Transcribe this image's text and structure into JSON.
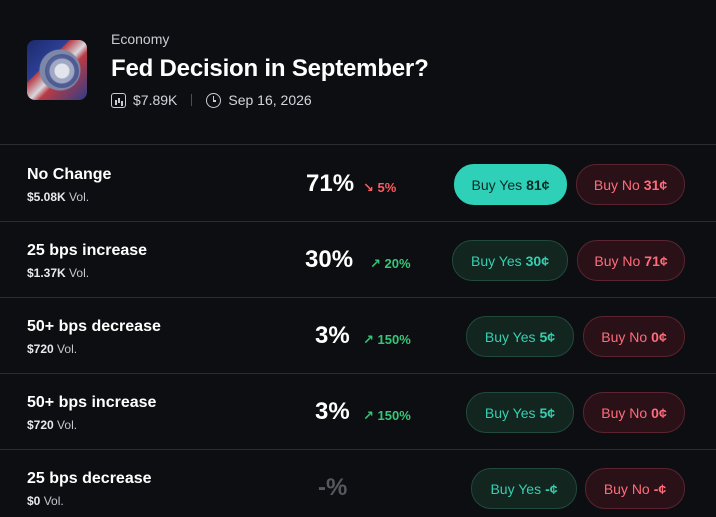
{
  "market": {
    "category": "Economy",
    "title": "Fed Decision in September?",
    "volume": "$7.89K",
    "date": "Sep 16, 2026"
  },
  "colors": {
    "yes_accent": "#2ed1b8",
    "no_accent": "#ff6c7c",
    "up": "#34c779",
    "down": "#ff5a5f"
  },
  "icons": {
    "volume": "volume-chart-icon",
    "date": "clock-icon",
    "trend_up": "arrow-up-right-icon",
    "trend_down": "arrow-down-right-icon"
  },
  "vol_suffix": "Vol.",
  "yes_label": "Buy Yes",
  "no_label": "Buy No",
  "outcomes": [
    {
      "name": "No Change",
      "volume": "$5.08K",
      "percent": "71%",
      "change": "5%",
      "direction": "down",
      "yes_price": "81¢",
      "no_price": "31¢"
    },
    {
      "name": "25 bps increase",
      "volume": "$1.37K",
      "percent": "30%",
      "change": "20%",
      "direction": "up",
      "yes_price": "30¢",
      "no_price": "71¢"
    },
    {
      "name": "50+ bps decrease",
      "volume": "$720",
      "percent": "3%",
      "change": "150%",
      "direction": "up",
      "yes_price": "5¢",
      "no_price": "0¢"
    },
    {
      "name": "50+ bps increase",
      "volume": "$720",
      "percent": "3%",
      "change": "150%",
      "direction": "up",
      "yes_price": "5¢",
      "no_price": "0¢"
    },
    {
      "name": "25 bps decrease",
      "volume": "$0",
      "percent": "-%",
      "change": "",
      "direction": "",
      "yes_price": "-¢",
      "no_price": "-¢"
    }
  ]
}
